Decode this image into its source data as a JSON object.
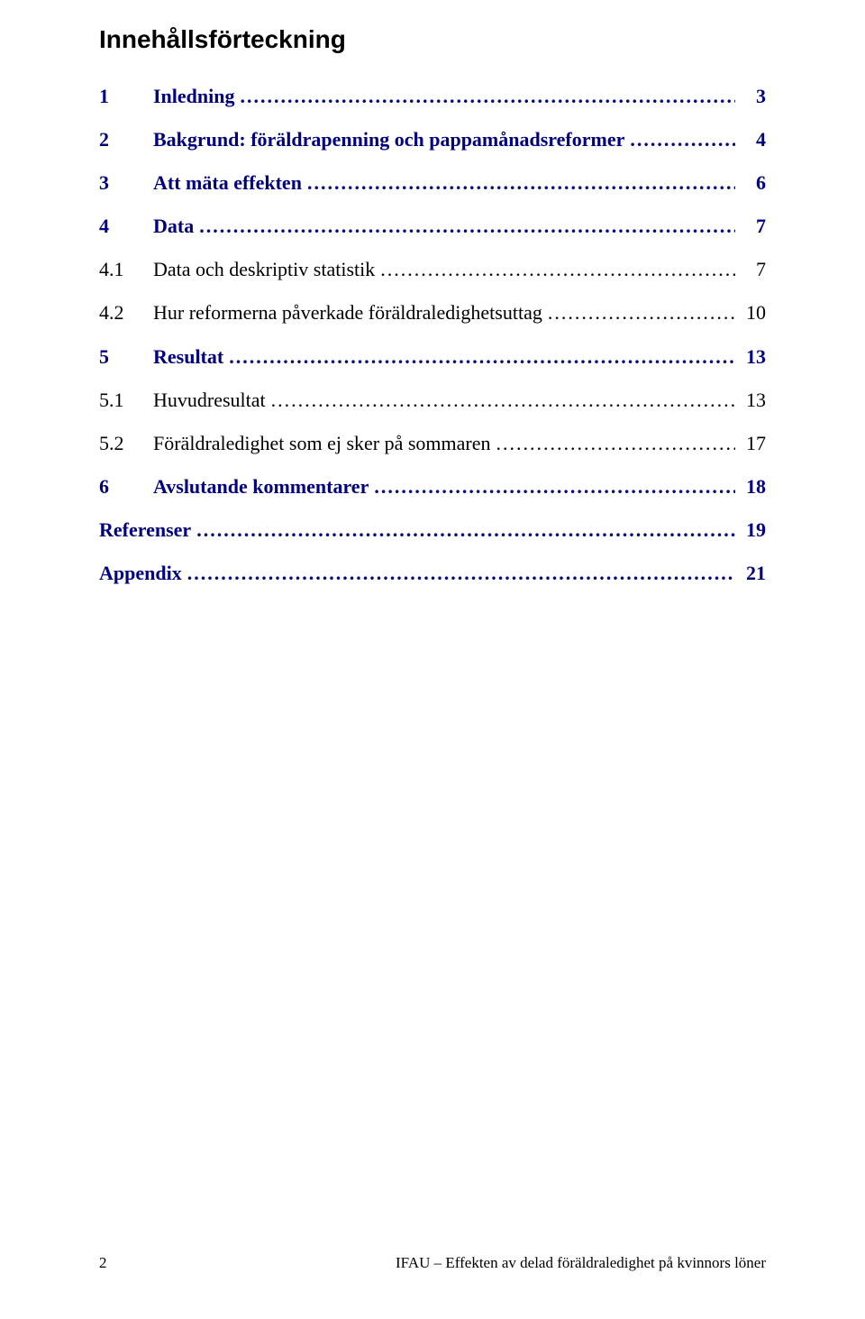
{
  "colors": {
    "link": "#00007f",
    "text": "#000000",
    "background": "#ffffff"
  },
  "typography": {
    "heading_family": "Arial",
    "heading_size_pt": 21,
    "heading_weight": "bold",
    "body_family": "Times New Roman",
    "body_size_pt": 16
  },
  "heading": "Innehållsförteckning",
  "toc": [
    {
      "num": "1",
      "title": "Inledning",
      "page": "3",
      "level": "top"
    },
    {
      "num": "2",
      "title": "Bakgrund: föräldrapenning och pappamånadsreformer",
      "page": "4",
      "level": "top"
    },
    {
      "num": "3",
      "title": "Att mäta effekten",
      "page": "6",
      "level": "top"
    },
    {
      "num": "4",
      "title": "Data",
      "page": "7",
      "level": "top"
    },
    {
      "num": "4.1",
      "title": "Data och deskriptiv statistik",
      "page": "7",
      "level": "sub"
    },
    {
      "num": "4.2",
      "title": "Hur reformerna påverkade föräldraledighetsuttag",
      "page": "10",
      "level": "sub"
    },
    {
      "num": "5",
      "title": "Resultat",
      "page": "13",
      "level": "top"
    },
    {
      "num": "5.1",
      "title": "Huvudresultat",
      "page": "13",
      "level": "sub"
    },
    {
      "num": "5.2",
      "title": "Föräldraledighet som ej sker på sommaren",
      "page": "17",
      "level": "sub"
    },
    {
      "num": "6",
      "title": "Avslutande kommentarer",
      "page": "18",
      "level": "top"
    },
    {
      "num": "",
      "title": "Referenser",
      "page": "19",
      "level": "ref"
    },
    {
      "num": "",
      "title": "Appendix",
      "page": "21",
      "level": "ref"
    }
  ],
  "footer": {
    "page_number": "2",
    "running_title": "IFAU – Effekten av delad föräldraledighet på kvinnors löner"
  }
}
